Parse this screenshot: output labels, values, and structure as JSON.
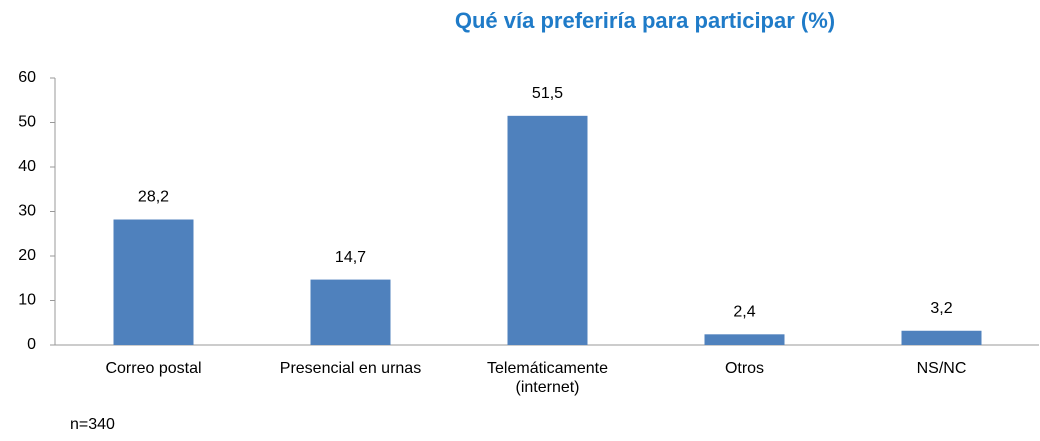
{
  "chart_data": {
    "type": "bar",
    "title": "Qué vía preferiría para participar  (%)",
    "categories": [
      "Correo postal",
      "Presencial en urnas",
      "Telemáticamente (internet)",
      "Otros",
      "NS/NC"
    ],
    "values": [
      28.2,
      14.7,
      51.5,
      2.4,
      3.2
    ],
    "value_labels": [
      "28,2",
      "14,7",
      "51,5",
      "2,4",
      "3,2"
    ],
    "color": "#4f81bd",
    "ylim": [
      0,
      60
    ],
    "yticks": [
      0,
      10,
      20,
      30,
      40,
      50,
      60
    ],
    "grid": false,
    "annotation": "n=340"
  }
}
